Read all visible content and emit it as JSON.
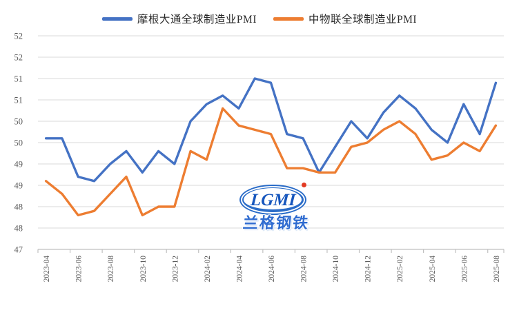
{
  "legend": {
    "items": [
      {
        "label": "摩根大通全球制造业PMI",
        "color": "#4472C4"
      },
      {
        "label": "中物联全球制造业PMI",
        "color": "#ED7D31"
      }
    ]
  },
  "y_axis": {
    "tick_labels": [
      "52",
      "52",
      "51",
      "51",
      "50",
      "50",
      "49",
      "49",
      "48",
      "48",
      "47"
    ],
    "tick_values": [
      52,
      51.5,
      51,
      50.5,
      50,
      49.5,
      49,
      48.5,
      48,
      47.5,
      47
    ]
  },
  "x_axis": {
    "tick_labels": [
      "2023-04",
      "2023-06",
      "2023-08",
      "2023-10",
      "2023-12",
      "2024-02",
      "2024-04",
      "2024-06",
      "2024-08",
      "2024-10",
      "2024-12",
      "2025-02",
      "2025-04",
      "2025-06",
      "2025-08"
    ]
  },
  "chart_data": {
    "type": "line",
    "x": [
      "2023-04",
      "2023-05",
      "2023-06",
      "2023-07",
      "2023-08",
      "2023-09",
      "2023-10",
      "2023-11",
      "2023-12",
      "2024-01",
      "2024-02",
      "2024-03",
      "2024-04",
      "2024-05",
      "2024-06",
      "2024-07",
      "2024-08",
      "2024-09",
      "2024-10",
      "2024-11",
      "2024-12",
      "2025-01",
      "2025-02",
      "2025-03",
      "2025-04",
      "2025-05",
      "2025-06",
      "2025-07",
      "2025-08"
    ],
    "series": [
      {
        "name": "摩根大通全球制造业PMI",
        "color": "#4472C4",
        "values": [
          49.6,
          49.6,
          48.7,
          48.6,
          49.0,
          49.3,
          48.8,
          49.3,
          49.0,
          50.0,
          50.4,
          50.6,
          50.3,
          51.0,
          50.9,
          49.7,
          49.6,
          48.8,
          49.4,
          50.0,
          49.6,
          50.2,
          50.6,
          50.3,
          49.8,
          49.5,
          50.4,
          49.7,
          50.9
        ]
      },
      {
        "name": "中物联全球制造业PMI",
        "color": "#ED7D31",
        "values": [
          48.6,
          48.3,
          47.8,
          47.9,
          48.3,
          48.7,
          47.8,
          48.0,
          48.0,
          49.3,
          49.1,
          50.3,
          49.9,
          49.8,
          49.7,
          48.9,
          48.9,
          48.8,
          48.8,
          49.4,
          49.5,
          49.8,
          50.0,
          49.7,
          49.1,
          49.2,
          49.5,
          49.3,
          49.9
        ]
      }
    ],
    "ylim": [
      47,
      52
    ],
    "y_step": 0.5,
    "x_label_interval": 2,
    "grid": true,
    "legend_position": "top"
  },
  "logo": {
    "text": "LGMI",
    "subtext": "兰格钢铁",
    "primary_color": "#1656BD",
    "dot_color": "#E23A22"
  },
  "colors": {
    "grid": "#D9D9D9",
    "axis": "#BFBFBF",
    "tick_label_color": "#595959"
  }
}
